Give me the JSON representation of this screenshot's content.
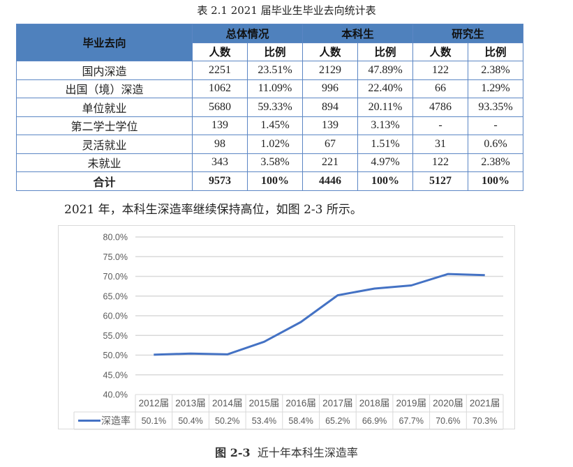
{
  "table": {
    "caption": "表 2.1 2021 届毕业生毕业去向统计表",
    "header": {
      "first_col": "毕业去向",
      "groups": [
        "总体情况",
        "本科生",
        "研究生"
      ],
      "sub": [
        "人数",
        "比例",
        "人数",
        "比例",
        "人数",
        "比例"
      ]
    },
    "rows": [
      {
        "label": "国内深造",
        "cells": [
          "2251",
          "23.51%",
          "2129",
          "47.89%",
          "122",
          "2.38%"
        ]
      },
      {
        "label": "出国（境）深造",
        "cells": [
          "1062",
          "11.09%",
          "996",
          "22.40%",
          "66",
          "1.29%"
        ]
      },
      {
        "label": "单位就业",
        "cells": [
          "5680",
          "59.33%",
          "894",
          "20.11%",
          "4786",
          "93.35%"
        ]
      },
      {
        "label": "第二学士学位",
        "cells": [
          "139",
          "1.45%",
          "139",
          "3.13%",
          "-",
          "-"
        ]
      },
      {
        "label": "灵活就业",
        "cells": [
          "98",
          "1.02%",
          "67",
          "1.51%",
          "31",
          "0.6%"
        ]
      },
      {
        "label": "未就业",
        "cells": [
          "343",
          "3.58%",
          "221",
          "4.97%",
          "122",
          "2.38%"
        ]
      }
    ],
    "total": {
      "label": "合计",
      "cells": [
        "9573",
        "100%",
        "4446",
        "100%",
        "5127",
        "100%"
      ]
    }
  },
  "paragraph": "2021 年，本科生深造率继续保持高位，如图 2-3 所示。",
  "figure_caption": {
    "number": "图 2-3",
    "title": "近十年本科生深造率"
  },
  "colors": {
    "header_blue": "#4f81bd",
    "border_blue": "#5b86c4",
    "line_blue": "#4472c4",
    "grid": "#d9d9d9"
  },
  "chart_data": {
    "type": "line",
    "title": "近十年本科生深造率",
    "xlabel": "",
    "ylabel": "",
    "categories": [
      "2012届",
      "2013届",
      "2014届",
      "2015届",
      "2016届",
      "2017届",
      "2018届",
      "2019届",
      "2020届",
      "2021届"
    ],
    "series": [
      {
        "name": "深造率",
        "values": [
          50.1,
          50.4,
          50.2,
          53.4,
          58.4,
          65.2,
          66.9,
          67.7,
          70.6,
          70.3
        ],
        "labels": [
          "50.1%",
          "50.4%",
          "50.2%",
          "53.4%",
          "58.4%",
          "65.2%",
          "66.9%",
          "67.7%",
          "70.6%",
          "70.3%"
        ]
      }
    ],
    "ylim": [
      40,
      80
    ],
    "yticks": [
      "80.0%",
      "75.0%",
      "70.0%",
      "65.0%",
      "60.0%",
      "55.0%",
      "50.0%",
      "45.0%",
      "40.0%"
    ],
    "grid": true,
    "legend_position": "data-table-left"
  }
}
